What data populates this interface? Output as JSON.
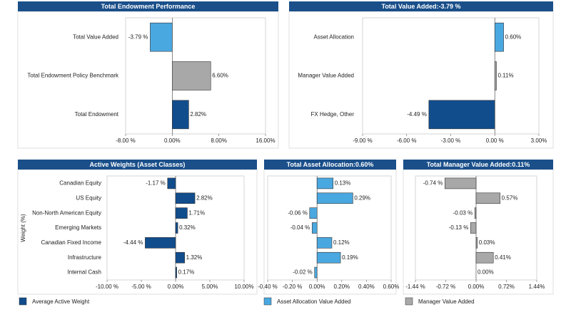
{
  "chart_data": [
    {
      "type": "barh",
      "title": "Total Endowment Performance",
      "categories": [
        "Total Value Added",
        "Total Endowment Policy Benchmark",
        "Total Endowment"
      ],
      "values": [
        -3.79,
        6.6,
        2.82
      ],
      "value_labels": [
        "-3.79 %",
        "6.60%",
        "2.82%"
      ],
      "colors": [
        "#4aa8e0",
        "#a8a8a8",
        "#114d8c"
      ],
      "xlim": [
        -8,
        16
      ],
      "xticks": [
        {
          "value": -8,
          "label": "-8.00 %"
        },
        {
          "value": 0,
          "label": "0.00%"
        },
        {
          "value": 8,
          "label": "8.00%"
        },
        {
          "value": 16,
          "label": "16.00%"
        }
      ]
    },
    {
      "type": "barh",
      "title": "Total Value Added:-3.79 %",
      "categories": [
        "Asset Allocation",
        "Manager Value Added",
        "FX Hedge, Other"
      ],
      "values": [
        0.6,
        0.11,
        -4.49
      ],
      "value_labels": [
        "0.60%",
        "0.11%",
        "-4.49 %"
      ],
      "colors": [
        "#4aa8e0",
        "#a8a8a8",
        "#114d8c"
      ],
      "xlim": [
        -9,
        3
      ],
      "xticks": [
        {
          "value": -9,
          "label": "-9.00 %"
        },
        {
          "value": -6,
          "label": "-6.00 %"
        },
        {
          "value": -3,
          "label": "-3.00 %"
        },
        {
          "value": 0,
          "label": "0.00 %"
        },
        {
          "value": 3,
          "label": "3.00%"
        }
      ]
    },
    {
      "type": "barh",
      "title": "Active Weights (Asset Classes)",
      "y_label": "Weight (%)",
      "categories": [
        "Canadian Equity",
        "US Equity",
        "Non-North American Equity",
        "Emerging Markets",
        "Canadian Fixed Income",
        "Infrastructure",
        "Internal Cash"
      ],
      "values": [
        -1.17,
        2.82,
        1.71,
        0.32,
        -4.44,
        1.32,
        0.17
      ],
      "value_labels": [
        "-1.17 %",
        "2.82%",
        "1.71%",
        "0.32%",
        "-4.44 %",
        "1.32%",
        "0.17%"
      ],
      "color": "#114d8c",
      "xlim": [
        -10,
        10
      ],
      "xticks": [
        {
          "value": -10,
          "label": "-10.00 %"
        },
        {
          "value": -5,
          "label": "-5.00 %"
        },
        {
          "value": 0,
          "label": "0.00%"
        },
        {
          "value": 5,
          "label": "5.00%"
        },
        {
          "value": 10,
          "label": "10.00%"
        }
      ]
    },
    {
      "type": "barh",
      "title": "Total Asset Allocation:0.60%",
      "values": [
        0.13,
        0.29,
        -0.06,
        -0.04,
        0.12,
        0.19,
        -0.02
      ],
      "value_labels": [
        "0.13%",
        "0.29%",
        "-0.06 %",
        "-0.04 %",
        "0.12%",
        "0.19%",
        "-0.02 %"
      ],
      "color": "#4aa8e0",
      "xlim": [
        -0.4,
        0.6
      ],
      "xticks": [
        {
          "value": -0.4,
          "label": "-0.40 %"
        },
        {
          "value": -0.2,
          "label": "-0.20 %"
        },
        {
          "value": 0,
          "label": "0.00%"
        },
        {
          "value": 0.2,
          "label": "0.20%"
        },
        {
          "value": 0.4,
          "label": "0.40%"
        },
        {
          "value": 0.6,
          "label": "0.60%"
        }
      ]
    },
    {
      "type": "barh",
      "title": "Total Manager Value Added:0.11%",
      "values": [
        -0.74,
        0.57,
        -0.03,
        -0.13,
        0.03,
        0.41,
        0.0
      ],
      "value_labels": [
        "-0.74 %",
        "0.57%",
        "-0.03 %",
        "-0.13 %",
        "0.03%",
        "0.41%",
        "0.00%"
      ],
      "color": "#a8a8a8",
      "xlim": [
        -1.44,
        1.44
      ],
      "xticks": [
        {
          "value": -1.44,
          "label": "-1.44 %"
        },
        {
          "value": -0.72,
          "label": "-0.72 %"
        },
        {
          "value": 0,
          "label": "0.00%"
        },
        {
          "value": 0.72,
          "label": "0.72%"
        },
        {
          "value": 1.44,
          "label": "1.44%"
        }
      ]
    }
  ],
  "legend": [
    {
      "name": "Average Active Weight",
      "color": "#114d8c"
    },
    {
      "name": "Asset Allocation Value Added",
      "color": "#4aa8e0"
    },
    {
      "name": "Manager Value Added",
      "color": "#a8a8a8"
    }
  ]
}
